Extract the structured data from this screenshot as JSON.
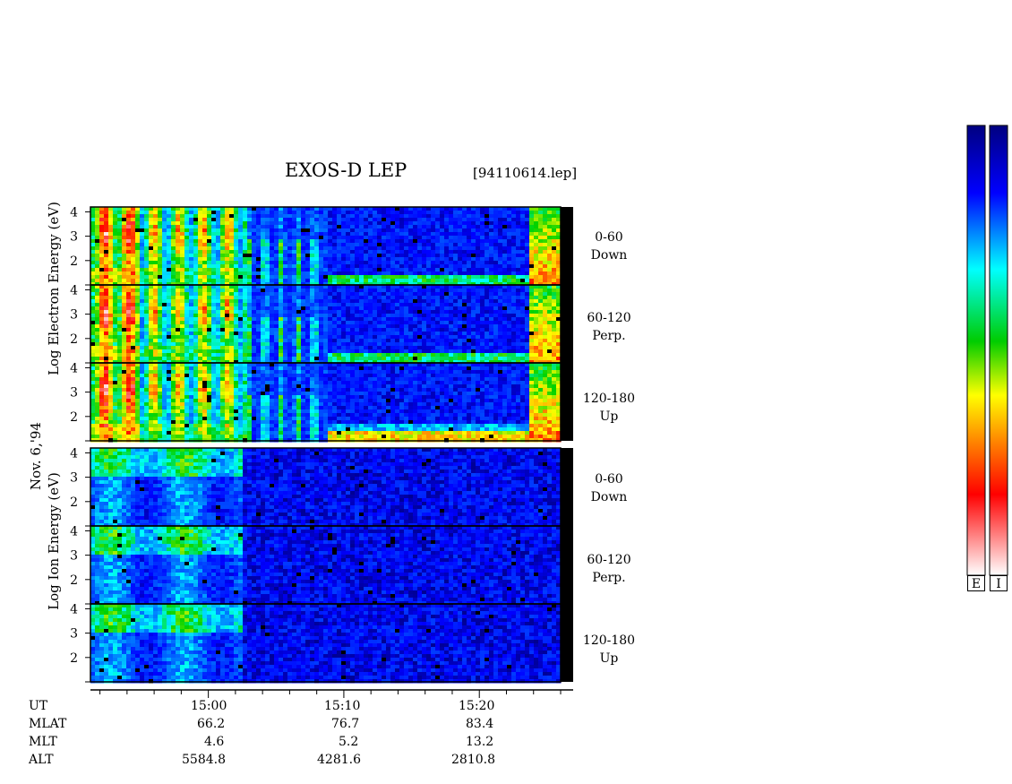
{
  "header": {
    "title": "EXOS-D LEP",
    "file": "[94110614.lep]"
  },
  "date_label": "Nov. 6,'94",
  "panels": {
    "electron": {
      "ylabel": "Log Electron Energy (eV)",
      "rows": [
        {
          "angle": "0-60",
          "dir": "Down"
        },
        {
          "angle": "60-120",
          "dir": "Perp."
        },
        {
          "angle": "120-180",
          "dir": "Up"
        }
      ]
    },
    "ion": {
      "ylabel": "Log Ion Energy (eV)",
      "rows": [
        {
          "angle": "0-60",
          "dir": "Down"
        },
        {
          "angle": "60-120",
          "dir": "Perp."
        },
        {
          "angle": "120-180",
          "dir": "Up"
        }
      ]
    }
  },
  "colorbar": {
    "labels": [
      "E",
      "I"
    ],
    "colors": [
      "#ffffff",
      "#ff0000",
      "#ff8800",
      "#ffff00",
      "#00cc00",
      "#00ffff",
      "#0000ff",
      "#000080"
    ]
  },
  "orbit": {
    "labels": [
      "UT",
      "MLAT",
      "MLT",
      "ALT"
    ],
    "columns": [
      {
        "UT": "15:00",
        "MLAT": "66.2",
        "MLT": "4.6",
        "ALT": "5584.8"
      },
      {
        "UT": "15:10",
        "MLAT": "76.7",
        "MLT": "5.2",
        "ALT": "4281.6"
      },
      {
        "UT": "15:20",
        "MLAT": "83.4",
        "MLT": "13.2",
        "ALT": "2810.8"
      }
    ]
  },
  "chart_data": {
    "type": "heatmap",
    "title": "EXOS-D LEP",
    "x_axis": {
      "label": "UT",
      "ticks": [
        "15:00",
        "15:10",
        "15:20"
      ],
      "range_minutes": [
        51.3,
        86.0
      ]
    },
    "y_axis": {
      "label": "Log Energy (eV)",
      "ticks": [
        "2",
        "3",
        "4"
      ],
      "range": [
        1,
        4.2
      ]
    },
    "sub_panels": [
      {
        "species": "Electron",
        "pitch_angle": "0-60",
        "direction": "Down"
      },
      {
        "species": "Electron",
        "pitch_angle": "60-120",
        "direction": "Perp."
      },
      {
        "species": "Electron",
        "pitch_angle": "120-180",
        "direction": "Up"
      },
      {
        "species": "Ion",
        "pitch_angle": "0-60",
        "direction": "Down"
      },
      {
        "species": "Ion",
        "pitch_angle": "60-120",
        "direction": "Perp."
      },
      {
        "species": "Ion",
        "pitch_angle": "120-180",
        "direction": "Up"
      }
    ],
    "colorbars": [
      "E",
      "I"
    ]
  }
}
